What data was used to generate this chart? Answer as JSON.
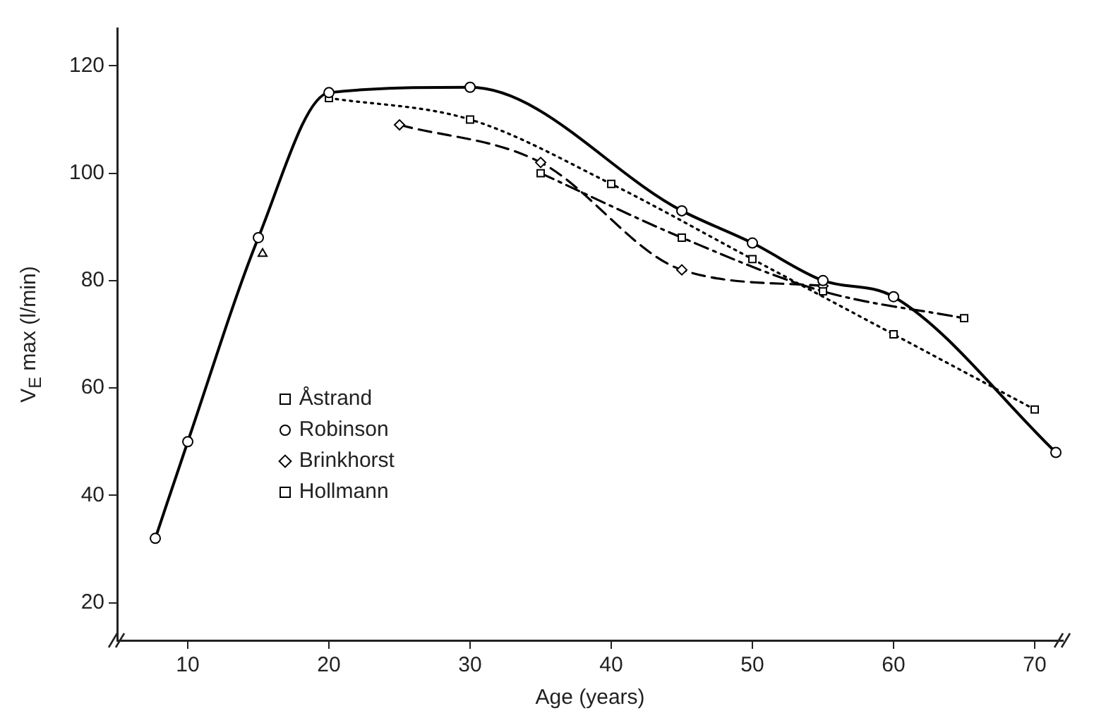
{
  "chart_data": {
    "type": "line",
    "xlabel": "Age (years)",
    "ylabel": "V$_{E}$ max (l/min)",
    "xlim": [
      5,
      72
    ],
    "ylim": [
      13,
      127
    ],
    "xticks": [
      10,
      20,
      30,
      40,
      50,
      60,
      70
    ],
    "yticks": [
      20,
      40,
      60,
      80,
      100,
      120
    ],
    "grid": false,
    "legend": "left",
    "series": [
      {
        "name": "Åstrand",
        "color": "#000000",
        "marker": "square",
        "line_style": "dashdot",
        "x": [
          35,
          45,
          55,
          65
        ],
        "values": [
          100,
          88,
          78,
          73
        ]
      },
      {
        "name": "Robinson",
        "color": "#000000",
        "marker": "circle",
        "line_style": "solid",
        "x": [
          7.7,
          10,
          15,
          20,
          30,
          45,
          50,
          55,
          60,
          71.5
        ],
        "values": [
          32,
          50,
          88,
          115,
          116,
          93,
          87,
          80,
          77,
          48
        ]
      },
      {
        "name": "Brinkhorst",
        "color": "#000000",
        "marker": "diamond",
        "line_style": "dashed",
        "x": [
          25,
          35,
          45,
          55
        ],
        "values": [
          109,
          102,
          82,
          79
        ]
      },
      {
        "name": "Hollmann",
        "color": "#000000",
        "marker": "square",
        "line_style": "dotted",
        "x": [
          20,
          30,
          40,
          50,
          60,
          70
        ],
        "values": [
          114,
          110,
          98,
          84,
          70,
          56
        ]
      },
      {
        "type": "scatter",
        "color": "#000000",
        "marker": "triangle",
        "x": [
          15.3
        ],
        "values": [
          85
        ]
      }
    ]
  }
}
